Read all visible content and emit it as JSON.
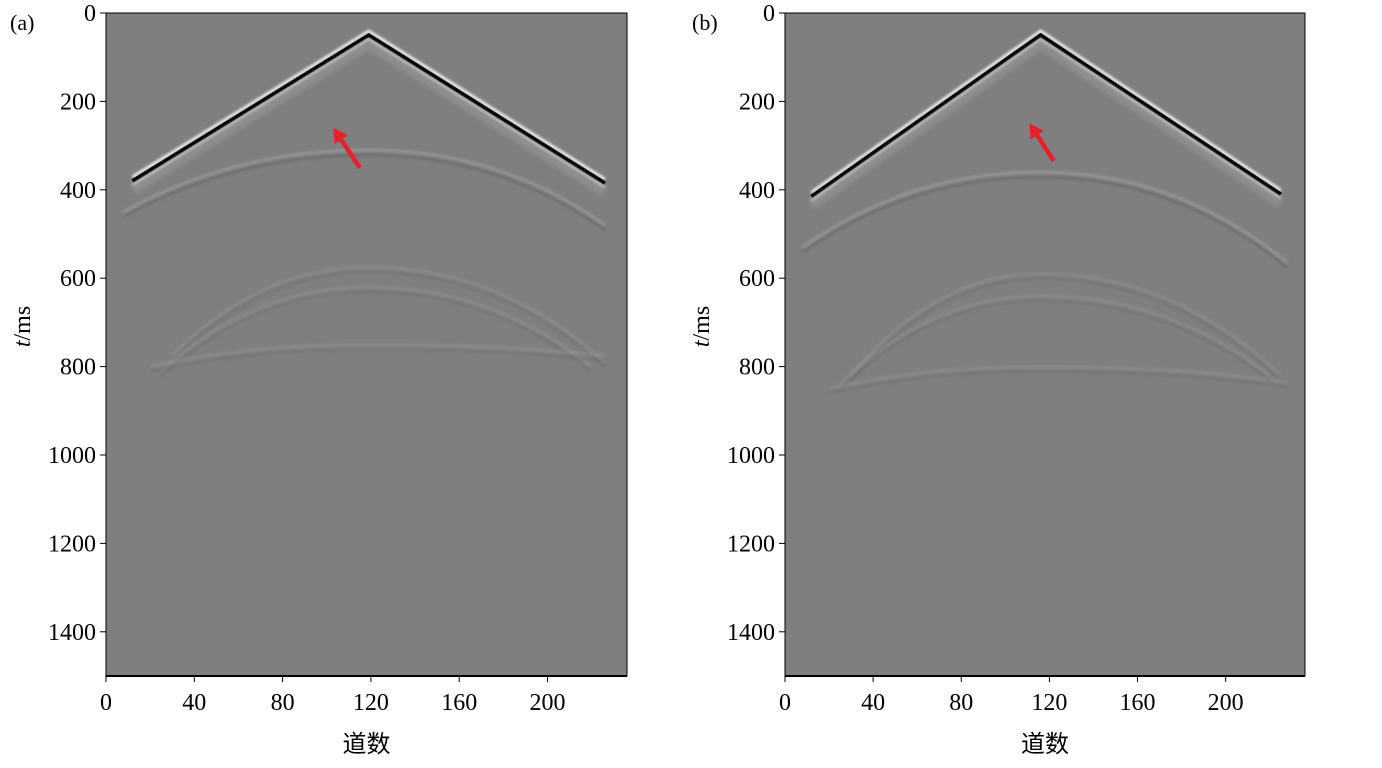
{
  "chart_data": [
    {
      "type": "heatmap",
      "panel_label": "(a)",
      "xlabel": "道数",
      "ylabel_italic": "t",
      "ylabel_unit": "/ms",
      "xlim": [
        0,
        236
      ],
      "ylim": [
        1500,
        0
      ],
      "xticks": [
        0,
        40,
        80,
        120,
        160,
        200
      ],
      "yticks": [
        0,
        200,
        400,
        600,
        800,
        1000,
        1200,
        1400
      ],
      "background_color": "#7f7f7f",
      "direct_wave": {
        "apex_trace": 119,
        "apex_time": 50,
        "left_end": [
          12,
          380
        ],
        "right_end": [
          226,
          385
        ]
      },
      "events": [
        {
          "apex_trace": 119,
          "apex_time": 310,
          "left_end": [
            8,
            450
          ],
          "right_end": [
            226,
            480
          ]
        },
        {
          "apex_trace": 119,
          "apex_time": 575,
          "left_end": [
            30,
            775
          ],
          "right_end": [
            226,
            790
          ]
        },
        {
          "apex_trace": 119,
          "apex_time": 620,
          "left_end": [
            25,
            810
          ],
          "right_end": [
            220,
            800
          ]
        },
        {
          "apex_trace": 119,
          "apex_time": 750,
          "left_end": [
            20,
            800
          ],
          "right_end": [
            226,
            775
          ]
        }
      ],
      "arrow": {
        "tail": [
          115,
          350
        ],
        "head": [
          103,
          260
        ],
        "color": "#e8202a"
      }
    },
    {
      "type": "heatmap",
      "panel_label": "(b)",
      "xlabel": "道数",
      "ylabel_italic": "t",
      "ylabel_unit": "/ms",
      "xlim": [
        0,
        236
      ],
      "ylim": [
        1500,
        0
      ],
      "xticks": [
        0,
        40,
        80,
        120,
        160,
        200
      ],
      "yticks": [
        0,
        200,
        400,
        600,
        800,
        1000,
        1200,
        1400
      ],
      "background_color": "#7f7f7f",
      "direct_wave": {
        "apex_trace": 116,
        "apex_time": 50,
        "left_end": [
          12,
          415
        ],
        "right_end": [
          225,
          410
        ]
      },
      "events": [
        {
          "apex_trace": 116,
          "apex_time": 360,
          "left_end": [
            8,
            530
          ],
          "right_end": [
            228,
            565
          ]
        },
        {
          "apex_trace": 116,
          "apex_time": 590,
          "left_end": [
            30,
            820
          ],
          "right_end": [
            225,
            820
          ]
        },
        {
          "apex_trace": 116,
          "apex_time": 640,
          "left_end": [
            25,
            840
          ],
          "right_end": [
            220,
            820
          ]
        },
        {
          "apex_trace": 116,
          "apex_time": 800,
          "left_end": [
            20,
            850
          ],
          "right_end": [
            228,
            835
          ]
        }
      ],
      "arrow": {
        "tail": [
          122,
          335
        ],
        "head": [
          111,
          250
        ],
        "color": "#e8202a"
      }
    }
  ]
}
